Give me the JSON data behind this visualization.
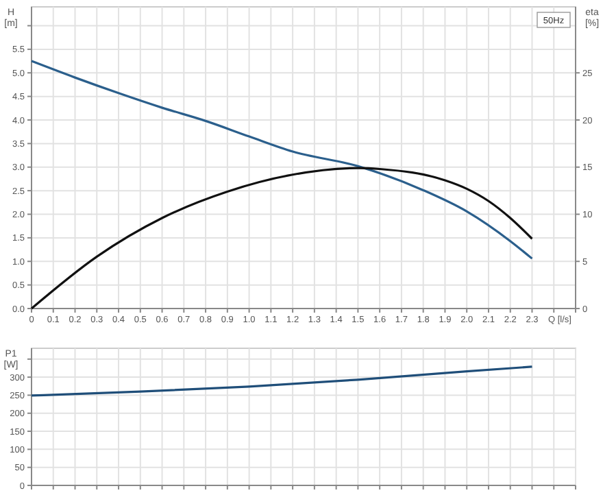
{
  "chart_data": [
    {
      "type": "line",
      "xlabel": "Q [l/s]",
      "ylabel": "H\n[m]",
      "y2label": "eta\n[%]",
      "annotations": [
        "50Hz"
      ],
      "grid": true,
      "marker": "none",
      "line_style": "solid",
      "xlim": [
        0,
        2.5
      ],
      "xticks": [
        0,
        0.1,
        0.2,
        0.3,
        0.4,
        0.5,
        0.6,
        0.7,
        0.8,
        0.9,
        {
          "value": 1,
          "label": "1.0"
        },
        1.1,
        1.2,
        1.3,
        1.4,
        1.5,
        1.6,
        1.7,
        1.8,
        1.9,
        {
          "value": 2,
          "label": "2.0"
        },
        2.1,
        2.2,
        2.3,
        {
          "value": 2.4,
          "label": null
        },
        {
          "value": 2.5,
          "label": null
        }
      ],
      "ylim": [
        0,
        6.4
      ],
      "yticks": [
        {
          "value": 0,
          "label": "0.0"
        },
        0.5,
        {
          "value": 1,
          "label": "1.0"
        },
        1.5,
        {
          "value": 2,
          "label": "2.0"
        },
        2.5,
        {
          "value": 3,
          "label": "3.0"
        },
        3.5,
        {
          "value": 4,
          "label": "4.0"
        },
        4.5,
        {
          "value": 5,
          "label": "5.0"
        },
        5.5,
        {
          "value": 6,
          "label": null
        }
      ],
      "y2lim": [
        0,
        32
      ],
      "y2ticks": [
        0,
        5,
        10,
        15,
        20,
        25
      ],
      "series": [
        {
          "color": "#2b5f8c",
          "x": [
            0,
            0.2,
            0.4,
            0.6,
            0.8,
            1.0,
            1.2,
            1.5,
            1.8,
            2.0,
            2.2,
            2.3
          ],
          "values": [
            5.25,
            4.9,
            4.57,
            4.26,
            3.98,
            3.65,
            3.33,
            3.02,
            2.51,
            2.06,
            1.43,
            1.06
          ]
        },
        {
          "color": "#111111",
          "axis": "y2",
          "x": [
            0,
            0.3,
            0.6,
            0.9,
            1.2,
            1.5,
            1.6,
            1.9,
            2.0,
            2.1,
            2.2,
            2.3
          ],
          "values": [
            0,
            5.5,
            9.6,
            12.4,
            14.2,
            14.9,
            14.8,
            13.6,
            12.7,
            11.4,
            9.6,
            7.4
          ]
        }
      ]
    },
    {
      "type": "line",
      "ylabel": "P1\n[W]",
      "grid": true,
      "marker": "none",
      "line_style": "solid",
      "tick_labels": "y",
      "xlim": [
        0,
        2.5
      ],
      "xticks": [
        0,
        0.1,
        0.2,
        0.3,
        0.4,
        0.5,
        0.6,
        0.7,
        0.8,
        0.9,
        1,
        1.1,
        1.2,
        1.3,
        1.4,
        1.5,
        1.6,
        1.7,
        1.8,
        1.9,
        2,
        2.1,
        2.2,
        2.3,
        2.4,
        2.5
      ],
      "ylim": [
        0,
        380
      ],
      "yticks": [
        0,
        50,
        100,
        150,
        200,
        250,
        300,
        {
          "value": 350,
          "label": null
        }
      ],
      "series": [
        {
          "color": "#1f4e79",
          "x": [
            0,
            0.5,
            1.0,
            1.5,
            2.0,
            2.3
          ],
          "values": [
            249,
            260,
            274,
            293,
            316,
            329
          ]
        }
      ]
    }
  ]
}
